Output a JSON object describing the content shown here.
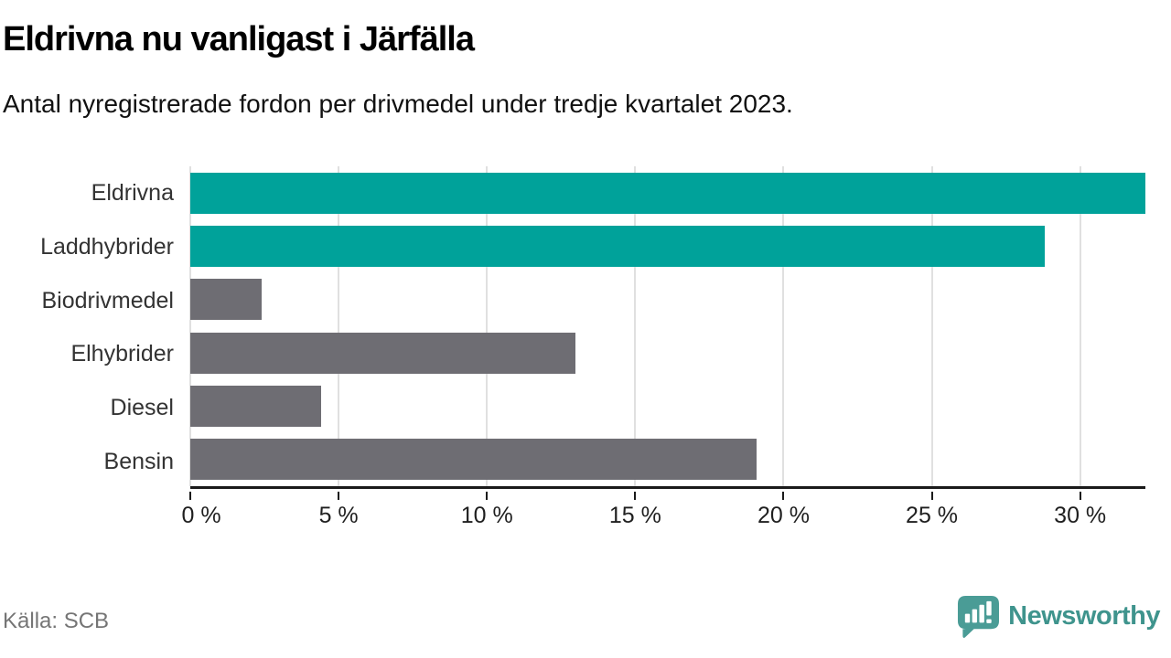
{
  "title": "Eldrivna nu vanligast i Järfälla",
  "subtitle": "Antal nyregistrerade fordon per drivmedel under tredje kvartalet 2023.",
  "footer": {
    "source": "Källa: SCB",
    "brand": "Newsworthy"
  },
  "colors": {
    "highlight_bar": "#00a29a",
    "default_bar": "#6e6d73",
    "gridline": "#e0e0e0",
    "axis": "#1a1a1a",
    "muted_text": "#757575",
    "logo_bubble": "#4a9c96",
    "logo_text": "#3f948d"
  },
  "chart_data": {
    "type": "bar",
    "orientation": "horizontal",
    "title": "Eldrivna nu vanligast i Järfälla",
    "subtitle": "Antal nyregistrerade fordon per drivmedel under tredje kvartalet 2023.",
    "xlabel": "",
    "ylabel": "",
    "unit": "%",
    "xlim": [
      0,
      32.2
    ],
    "grid": "vertical",
    "legend": "none",
    "categories": [
      "Eldrivna",
      "Laddhybrider",
      "Biodrivmedel",
      "Elhybrider",
      "Diesel",
      "Bensin"
    ],
    "values": [
      32.2,
      28.8,
      2.4,
      13.0,
      4.4,
      19.1
    ],
    "highlighted": [
      true,
      true,
      false,
      false,
      false,
      false
    ],
    "ticks": [
      {
        "value": 0,
        "label": "0 %"
      },
      {
        "value": 5,
        "label": "5 %"
      },
      {
        "value": 10,
        "label": "10 %"
      },
      {
        "value": 15,
        "label": "15 %"
      },
      {
        "value": 20,
        "label": "20 %"
      },
      {
        "value": 25,
        "label": "25 %"
      },
      {
        "value": 30,
        "label": "30 %"
      }
    ]
  }
}
